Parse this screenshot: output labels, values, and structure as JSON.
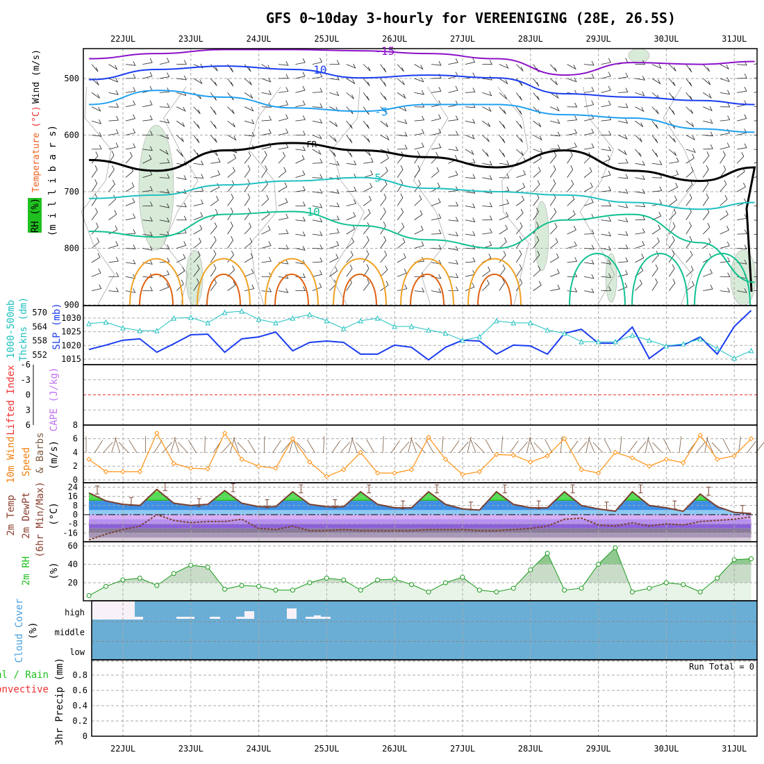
{
  "title": "GFS 0~10day 3-hourly for VEREENIGING (28E, 26.5S)",
  "days": [
    "22JUL",
    "23JUL",
    "24JUL",
    "25JUL",
    "26JUL",
    "27JUL",
    "28JUL",
    "29JUL",
    "30JUL",
    "31JUL"
  ],
  "labels": {
    "wind": "Wind (m/s)",
    "temperature": "Temperature",
    "temp_unit": "(°C)",
    "rh": "RH (%)",
    "millibars": "(m i l l i b a r s)",
    "thickness1": "1000-500mb",
    "thickness2": "Thckns (dm)",
    "slp": "SLP (mb)",
    "lifted": "Lifted Index",
    "cape": "CAPE (J/kg)",
    "wind10a": "10m Wind",
    "wind10b": "Speed",
    "wind10c": "& Barbs",
    "wind10d": "(m/s)",
    "temp2a": "2m Temp",
    "temp2b": "2m DewPt",
    "temp2c": "(6hr Min/Max)",
    "temp2d": "(°C)",
    "rh2a": "2m RH",
    "rh2b": "(%)",
    "clouda": "Cloud Cover",
    "cloudb": "(%)",
    "precipa": "Total / Rain",
    "precipb": "Convective",
    "precipc": "3hr Precip (mm)",
    "run_total": "Run Total = 0"
  },
  "colors": {
    "slp": "#1a3cf0",
    "thickness": "#20c0c0",
    "wind": "#ff9010",
    "rh": "#1a9a1a",
    "cloud": "#6aaed6",
    "dewpt": "#8b5040"
  },
  "chart_data": [
    {
      "type": "line",
      "title": "Upper-air isotherms",
      "ylabel": "millibars",
      "ylim": [
        900,
        450
      ],
      "yticks": [
        "500",
        "600",
        "700",
        "800",
        "900"
      ],
      "x_days": [
        21.5,
        22.5,
        23.5,
        24.5,
        25.5,
        26.5,
        27.5,
        28.5,
        29.5,
        30.5,
        31.3
      ],
      "series": [
        {
          "name": "-15",
          "color": "#8a10c8",
          "pressure": [
            465,
            456,
            449,
            449,
            451,
            456,
            465,
            494,
            472,
            475,
            470
          ]
        },
        {
          "name": "-10",
          "color": "#1a3cf0",
          "pressure": [
            502,
            484,
            478,
            484,
            499,
            494,
            499,
            527,
            533,
            539,
            546
          ]
        },
        {
          "name": "-5",
          "color": "#20a0f0",
          "pressure": [
            546,
            521,
            533,
            552,
            558,
            546,
            546,
            564,
            570,
            589,
            595
          ]
        },
        {
          "name": "FR",
          "color": "#000000",
          "pressure": [
            644,
            663,
            627,
            614,
            627,
            639,
            657,
            627,
            663,
            681,
            657
          ]
        },
        {
          "name": "5",
          "color": "#20c0c0",
          "pressure": [
            712,
            706,
            688,
            681,
            675,
            694,
            700,
            706,
            719,
            731,
            719
          ]
        },
        {
          "name": "10",
          "color": "#10c090",
          "pressure": [
            770,
            780,
            740,
            735,
            760,
            785,
            800,
            750,
            740,
            790,
            860
          ]
        }
      ]
    },
    {
      "type": "line",
      "title": "SLP and 1000-500mb thickness",
      "x_step_hours": 6,
      "series": [
        {
          "name": "SLP (mb)",
          "ylim": [
            1013,
            1034
          ],
          "values": [
            1018.5,
            1020.1,
            1021.9,
            1022.4,
            1017.5,
            1020.6,
            1023.9,
            1024.1,
            1017.5,
            1022.4,
            1023.1,
            1024.9,
            1018.0,
            1021.1,
            1021.6,
            1021.1,
            1016.8,
            1016.8,
            1020.1,
            1019.3,
            1014.7,
            1019.3,
            1021.9,
            1021.6,
            1016.8,
            1020.1,
            1019.8,
            1016.8,
            1024.4,
            1025.9,
            1020.8,
            1020.8,
            1026.7,
            1015.2,
            1019.8,
            1020.1,
            1023.1,
            1016.8,
            1026.9,
            1032.8
          ]
        },
        {
          "name": "Thickness (dm)",
          "ylim": [
            548,
            573
          ],
          "values": [
            565.3,
            565.9,
            563.5,
            562.3,
            562.3,
            567.6,
            567.9,
            565.6,
            570,
            570.6,
            567.1,
            565.6,
            567.6,
            569.1,
            566.5,
            563.2,
            566.5,
            567.6,
            564.1,
            564.1,
            562.6,
            561.2,
            558.2,
            559.7,
            566.5,
            565.6,
            565.6,
            562.6,
            561.2,
            557.6,
            557.6,
            557.6,
            560.3,
            558.2,
            555.8,
            556.7,
            558.8,
            554.7,
            550.6,
            553.8
          ]
        }
      ],
      "yticks_slp": [
        "1030",
        "1025",
        "1020",
        "1015"
      ],
      "yticks_thk": [
        "570",
        "564",
        "558",
        "552"
      ]
    },
    {
      "type": "line",
      "title": "Lifted Index",
      "ylim": [
        6,
        -6
      ],
      "yticks": [
        "-6",
        "-3",
        "0",
        "3",
        "6"
      ],
      "values": []
    },
    {
      "type": "line",
      "title": "10m Wind Speed",
      "ylim": [
        0,
        8
      ],
      "yticks": [
        "0",
        "2",
        "4",
        "6",
        "8"
      ],
      "values": [
        3,
        1.2,
        1.2,
        1.2,
        6.8,
        2.4,
        1.7,
        1.6,
        6.8,
        3,
        2,
        1.7,
        6,
        2.6,
        0.5,
        1.5,
        4,
        1,
        1,
        1.5,
        6.2,
        3,
        0.8,
        1.2,
        3.7,
        3.6,
        2.6,
        3.5,
        6,
        1.5,
        1,
        4,
        3.2,
        2,
        3,
        2.5,
        6.5,
        3,
        3.5,
        6
      ]
    },
    {
      "type": "area",
      "title": "2m Temp / DewPt",
      "ylim": [
        -22,
        27
      ],
      "yticks": [
        "24",
        "16",
        "8",
        "0",
        "-8",
        "-16"
      ],
      "series": [
        {
          "name": "2m Temp",
          "values": [
            19,
            12,
            9,
            8,
            22,
            10,
            8,
            9,
            21,
            10,
            7,
            7,
            20,
            9,
            7,
            7,
            20,
            9,
            6,
            6,
            20,
            9,
            5,
            4,
            20,
            9,
            6,
            6,
            20,
            8,
            5,
            3,
            20,
            8,
            6,
            3,
            18,
            7,
            2,
            1
          ]
        },
        {
          "name": "2m DewPt",
          "values": [
            -22,
            -17,
            -13,
            -10,
            0,
            -5,
            -7,
            -6,
            -6,
            -4,
            -12,
            -13,
            -10,
            -14,
            -14,
            -13,
            -14,
            -14,
            -14,
            -14,
            -13,
            -13,
            -13,
            -14,
            -14,
            -13,
            -12,
            -10,
            -4,
            -3,
            -9,
            -10,
            -7,
            -10,
            -8,
            -9,
            -6,
            -5,
            -4,
            -2
          ]
        }
      ]
    },
    {
      "type": "area",
      "title": "2m RH",
      "ylim": [
        0,
        64
      ],
      "yticks": [
        "20",
        "40",
        "60"
      ],
      "values": [
        6,
        16,
        23,
        25,
        17,
        30,
        39,
        37,
        13,
        17,
        16,
        12,
        12,
        20,
        25,
        23,
        12,
        23,
        24,
        18,
        10,
        20,
        26,
        12,
        10,
        14,
        34,
        52,
        12,
        14,
        40,
        58,
        10,
        14,
        20,
        18,
        10,
        25,
        45,
        46
      ]
    },
    {
      "type": "heatmap",
      "title": "Cloud Cover",
      "yticks": [
        "high",
        "middle",
        "low"
      ]
    },
    {
      "type": "bar",
      "title": "3hr Precip",
      "ylim": [
        0,
        1
      ],
      "yticks": [
        "0",
        "0.2",
        "0.4",
        "0.6",
        "0.8"
      ],
      "values": []
    }
  ]
}
